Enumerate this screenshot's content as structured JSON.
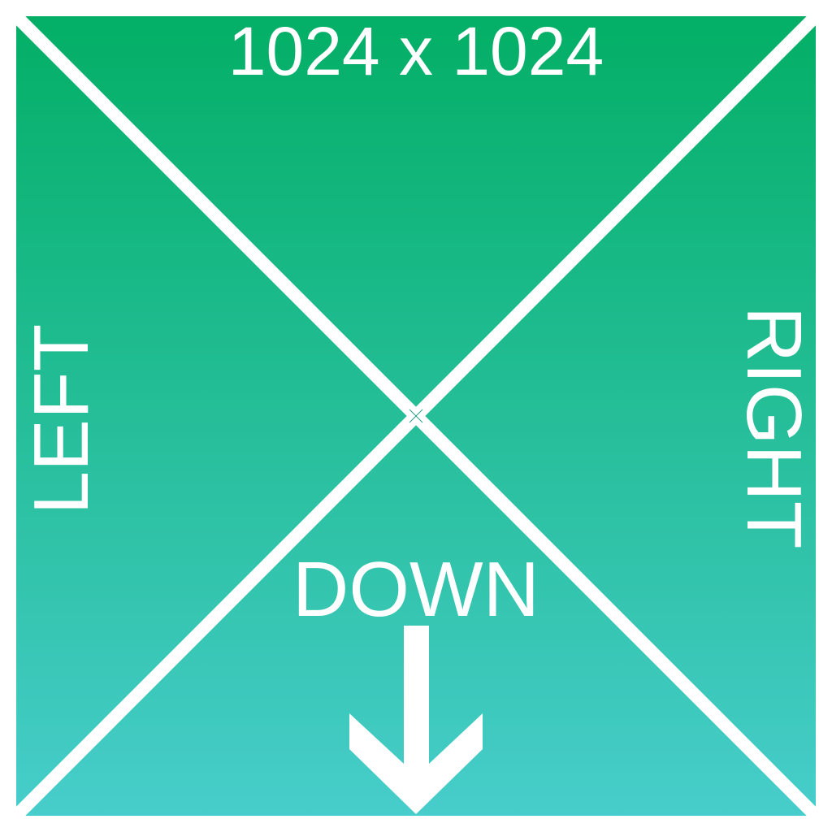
{
  "labels": {
    "size": "1024 x 1024",
    "left": "LEFT",
    "right": "RIGHT",
    "down": "DOWN"
  },
  "icons": {
    "arrow": "arrow-down-icon",
    "crosshair": "center-crosshair-icon"
  },
  "colors": {
    "gradient_top": "#03AF66",
    "gradient_bottom": "#47CDCB",
    "line": "#FFFFFF",
    "border": "#FFFFFF"
  }
}
